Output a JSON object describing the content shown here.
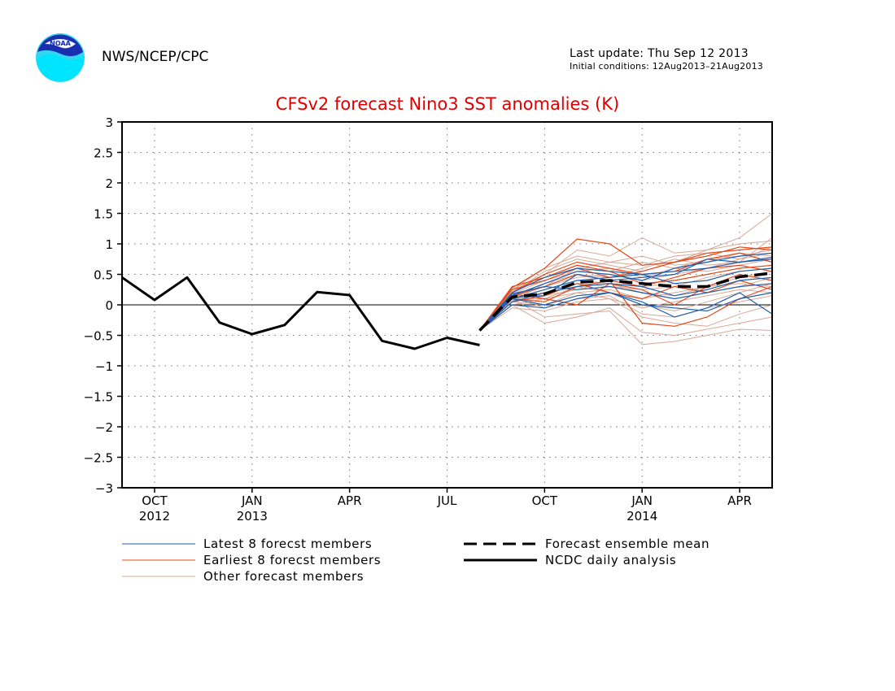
{
  "header": {
    "org": "NWS/NCEP/CPC",
    "last_update": "Last update: Thu Sep 12 2013",
    "initial_conditions": "Initial conditions: 12Aug2013–21Aug2013",
    "logo_text": "NOAA"
  },
  "colors": {
    "title": "#e00000",
    "latest": "#1f5fb0",
    "earliest": "#e2491a",
    "other": "#d9a796",
    "analysis": "#000000"
  },
  "chart_data": {
    "type": "line",
    "title": "CFSv2 forecast Nino3 SST anomalies (K)",
    "xlabel": "",
    "ylabel": "",
    "ylim": [
      -3,
      3
    ],
    "yticks": [
      3,
      2.5,
      2,
      1.5,
      1,
      0.5,
      0,
      -0.5,
      -1,
      -1.5,
      -2,
      -2.5,
      -3
    ],
    "ytick_labels": [
      "3",
      "2.5",
      "2",
      "1.5",
      "1",
      "0.5",
      "0",
      "−0.5",
      "−1",
      "−1.5",
      "−2",
      "−2.5",
      "−3"
    ],
    "xlim": [
      "2012-09",
      "2014-05"
    ],
    "xticks": [
      {
        "month": "2012-10",
        "label": "OCT",
        "year": "2012"
      },
      {
        "month": "2013-01",
        "label": "JAN",
        "year": "2013"
      },
      {
        "month": "2013-04",
        "label": "APR",
        "year": ""
      },
      {
        "month": "2013-07",
        "label": "JUL",
        "year": ""
      },
      {
        "month": "2013-10",
        "label": "OCT",
        "year": ""
      },
      {
        "month": "2014-01",
        "label": "JAN",
        "year": "2014"
      },
      {
        "month": "2014-04",
        "label": "APR",
        "year": ""
      }
    ],
    "grid": true,
    "zero_line": true,
    "analysis": {
      "name": "NCDC daily analysis",
      "x": [
        "2012-09",
        "2012-10",
        "2012-11",
        "2012-12",
        "2013-01",
        "2013-02",
        "2013-03",
        "2013-04",
        "2013-05",
        "2013-06",
        "2013-07",
        "2013-08"
      ],
      "y": [
        0.45,
        0.08,
        0.45,
        -0.29,
        -0.48,
        -0.33,
        0.21,
        0.16,
        -0.59,
        -0.72,
        -0.54,
        -0.66
      ]
    },
    "forecast_x": [
      "2013-08",
      "2013-09",
      "2013-10",
      "2013-11",
      "2013-12",
      "2014-01",
      "2014-02",
      "2014-03",
      "2014-04",
      "2014-05"
    ],
    "ensemble_mean": {
      "name": "Forecast ensemble mean",
      "y": [
        -0.42,
        0.13,
        0.18,
        0.37,
        0.4,
        0.35,
        0.3,
        0.3,
        0.46,
        0.52
      ]
    },
    "latest_members": {
      "name": "Latest 8 forecst members",
      "series": [
        [
          -0.42,
          0.1,
          0.0,
          0.15,
          0.2,
          0.05,
          -0.2,
          -0.05,
          0.2,
          -0.15
        ],
        [
          -0.42,
          0.15,
          0.35,
          0.55,
          0.5,
          0.4,
          0.6,
          0.7,
          0.8,
          0.85
        ],
        [
          -0.42,
          0.05,
          0.2,
          0.3,
          0.35,
          0.3,
          0.15,
          0.25,
          0.4,
          0.45
        ],
        [
          -0.42,
          0.2,
          0.45,
          0.6,
          0.55,
          0.5,
          0.55,
          0.6,
          0.7,
          0.75
        ],
        [
          -0.42,
          0.0,
          -0.05,
          0.1,
          0.2,
          0.0,
          -0.05,
          -0.1,
          0.1,
          0.2
        ],
        [
          -0.42,
          0.1,
          0.25,
          0.4,
          0.45,
          0.5,
          0.35,
          0.4,
          0.55,
          0.6
        ],
        [
          -0.42,
          0.18,
          0.3,
          0.25,
          0.3,
          0.2,
          0.1,
          0.2,
          0.3,
          0.35
        ],
        [
          -0.42,
          0.12,
          0.15,
          0.5,
          0.4,
          0.45,
          0.5,
          0.75,
          0.7,
          0.78
        ]
      ]
    },
    "earliest_members": {
      "name": "Earliest 8 forecst members",
      "series": [
        [
          -0.42,
          0.28,
          0.6,
          1.08,
          1.0,
          0.65,
          0.7,
          0.8,
          0.95,
          0.9
        ],
        [
          -0.42,
          0.2,
          0.5,
          0.7,
          0.6,
          0.5,
          0.55,
          0.75,
          0.85,
          0.7
        ],
        [
          -0.42,
          0.15,
          0.3,
          0.5,
          0.4,
          0.3,
          0.45,
          0.6,
          0.65,
          0.55
        ],
        [
          -0.42,
          0.1,
          0.05,
          0.3,
          0.4,
          -0.3,
          -0.35,
          -0.2,
          0.1,
          0.3
        ],
        [
          -0.42,
          0.25,
          0.4,
          0.6,
          0.45,
          0.55,
          0.7,
          0.85,
          0.9,
          0.95
        ],
        [
          -0.42,
          0.05,
          0.15,
          0.35,
          0.2,
          0.1,
          0.3,
          0.2,
          0.4,
          0.25
        ],
        [
          -0.42,
          0.3,
          0.45,
          0.65,
          0.55,
          0.35,
          0.4,
          0.5,
          0.6,
          0.65
        ],
        [
          -0.42,
          0.18,
          0.1,
          0.0,
          0.35,
          0.25,
          0.0,
          0.3,
          0.5,
          0.4
        ]
      ]
    },
    "other_members": {
      "name": "Other forecast members",
      "series": [
        [
          -0.42,
          0.2,
          0.55,
          0.75,
          0.65,
          0.55,
          0.7,
          0.9,
          1.1,
          1.5
        ],
        [
          -0.42,
          0.1,
          -0.2,
          -0.15,
          -0.1,
          -0.65,
          -0.6,
          -0.5,
          -0.4,
          -0.42
        ],
        [
          -0.42,
          0.15,
          0.3,
          0.45,
          0.5,
          0.4,
          0.5,
          0.6,
          0.75,
          0.85
        ],
        [
          -0.42,
          0.05,
          0.0,
          0.2,
          0.25,
          0.1,
          0.2,
          0.3,
          0.45,
          0.55
        ],
        [
          -0.42,
          0.25,
          0.5,
          0.9,
          0.8,
          1.1,
          0.85,
          0.9,
          1.0,
          1.05
        ],
        [
          -0.42,
          -0.05,
          -0.1,
          0.05,
          0.1,
          -0.2,
          -0.3,
          -0.35,
          -0.15,
          0.0
        ],
        [
          -0.42,
          0.12,
          0.2,
          0.35,
          0.3,
          0.25,
          0.3,
          0.45,
          0.55,
          0.6
        ],
        [
          -0.42,
          0.0,
          -0.3,
          -0.2,
          -0.05,
          -0.45,
          -0.5,
          -0.4,
          -0.3,
          -0.2
        ],
        [
          -0.42,
          0.18,
          0.4,
          0.55,
          0.6,
          0.45,
          0.6,
          0.75,
          0.8,
          0.9
        ],
        [
          -0.42,
          0.08,
          0.1,
          0.3,
          0.2,
          0.0,
          -0.1,
          0.05,
          0.2,
          0.35
        ],
        [
          -0.42,
          0.22,
          0.45,
          0.65,
          0.55,
          0.7,
          0.6,
          0.55,
          0.65,
          0.75
        ],
        [
          -0.42,
          0.1,
          0.25,
          0.4,
          0.35,
          0.2,
          0.15,
          0.3,
          0.35,
          0.3
        ],
        [
          -0.42,
          0.15,
          -0.05,
          0.1,
          0.15,
          -0.15,
          -0.2,
          -0.05,
          0.05,
          0.15
        ],
        [
          -0.42,
          0.05,
          0.35,
          0.5,
          0.45,
          0.6,
          0.75,
          0.65,
          0.7,
          1.1
        ],
        [
          -0.42,
          0.2,
          0.15,
          0.25,
          0.4,
          0.3,
          0.35,
          0.2,
          0.3,
          0.45
        ],
        [
          -0.42,
          0.12,
          0.3,
          0.6,
          0.7,
          0.8,
          0.65,
          0.7,
          0.85,
          0.8
        ],
        [
          -0.42,
          0.0,
          0.1,
          0.2,
          0.1,
          -0.05,
          0.05,
          0.15,
          0.25,
          0.2
        ],
        [
          -0.42,
          0.25,
          0.6,
          0.8,
          0.7,
          0.65,
          0.8,
          0.85,
          0.75,
          0.95
        ]
      ]
    },
    "legend": [
      {
        "name": "Latest 8 forecst members",
        "style": "thin",
        "color_key": "latest"
      },
      {
        "name": "Earliest 8 forecst members",
        "style": "thin",
        "color_key": "earliest"
      },
      {
        "name": "Other forecast members",
        "style": "thin",
        "color_key": "other"
      },
      {
        "name": "Forecast ensemble mean",
        "style": "dashed",
        "color_key": "analysis"
      },
      {
        "name": "NCDC daily analysis",
        "style": "solid",
        "color_key": "analysis"
      }
    ],
    "legend_placement": "bottom"
  }
}
